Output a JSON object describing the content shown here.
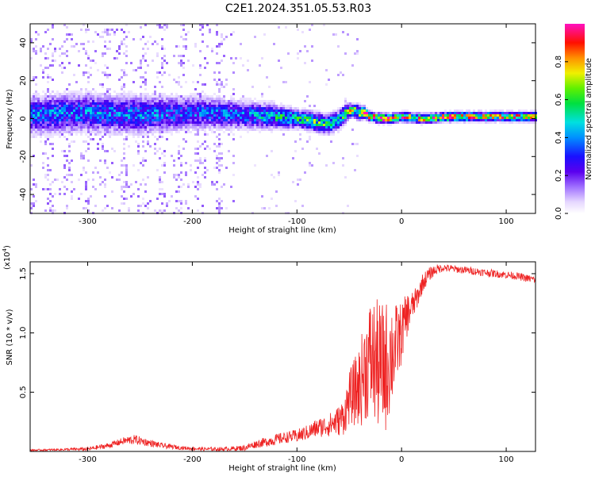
{
  "figure": {
    "title": "C2E1.2024.351.05.53.R03"
  },
  "chart_data": [
    {
      "type": "heatmap",
      "panel": "spectrogram",
      "xlabel": "Height of straight line (km)",
      "ylabel": "Frequency (Hz)",
      "xlim": [
        -355,
        128
      ],
      "ylim": [
        -50,
        50
      ],
      "xticks": [
        -300,
        -200,
        -100,
        0,
        100
      ],
      "yticks": [
        -40,
        -20,
        0,
        20,
        40
      ],
      "colorbar": {
        "label": "Normalized spectral amplitude",
        "range": [
          0,
          1
        ],
        "ticks": [
          0.0,
          0.2,
          0.4,
          0.6,
          0.8
        ],
        "colormap": "rainbow (white-purple-blue-cyan-green-yellow-red-magenta)",
        "position": "right"
      },
      "signal_track": {
        "description_of_profile": "frequency centroid of the main signal band versus height",
        "x": [
          -355,
          -300,
          -250,
          -200,
          -150,
          -120,
          -100,
          -80,
          -70,
          -60,
          -55,
          -50,
          -45,
          -40,
          -35,
          -30,
          -20,
          -10,
          0,
          20,
          50,
          100,
          128
        ],
        "center_freq": [
          2,
          3,
          2,
          3,
          2,
          1,
          0,
          -2,
          -3,
          -1,
          2,
          4,
          4,
          3,
          3,
          1,
          0,
          0,
          1,
          0,
          1,
          1,
          1
        ],
        "band_halfwidth": [
          8,
          8,
          8,
          7,
          6,
          5,
          4,
          4,
          4,
          4,
          4,
          3,
          3,
          3,
          2.5,
          2,
          2,
          2,
          2,
          2,
          2,
          2,
          2
        ],
        "peak_amplitude": [
          0.35,
          0.35,
          0.35,
          0.32,
          0.35,
          0.45,
          0.5,
          0.55,
          0.55,
          0.5,
          0.55,
          0.6,
          0.65,
          0.7,
          0.8,
          0.85,
          0.95,
          0.8,
          0.8,
          0.75,
          0.8,
          0.75,
          0.72
        ],
        "scatter_noise": "diffuse low-amplitude speckle across all frequencies for heights below about -160 km"
      }
    },
    {
      "type": "line",
      "panel": "snr",
      "xlabel": "Height of straight line (km)",
      "ylabel": "SNR (10 * v/v)",
      "y_multiplier_label": "(x10",
      "y_multiplier_exponent": "4",
      "xlim": [
        -355,
        128
      ],
      "ylim": [
        0,
        1.6
      ],
      "xticks": [
        -300,
        -200,
        -100,
        0,
        100
      ],
      "yticks": [
        0.5,
        1.0,
        1.5
      ],
      "ytick_labels": [
        "0.5",
        "1.0",
        "1.5"
      ],
      "series": [
        {
          "color": "#ee2222",
          "x": [
            -355,
            -330,
            -300,
            -280,
            -265,
            -255,
            -245,
            -230,
            -210,
            -190,
            -170,
            -150,
            -140,
            -130,
            -120,
            -110,
            -100,
            -90,
            -80,
            -70,
            -60,
            -55,
            -50,
            -45,
            -40,
            -35,
            -30,
            -25,
            -20,
            -15,
            -10,
            -5,
            0,
            5,
            10,
            15,
            20,
            25,
            30,
            35,
            40,
            50,
            60,
            70,
            80,
            90,
            100,
            110,
            120,
            128
          ],
          "y": [
            0.01,
            0.015,
            0.02,
            0.05,
            0.09,
            0.1,
            0.08,
            0.05,
            0.03,
            0.02,
            0.02,
            0.03,
            0.06,
            0.08,
            0.1,
            0.12,
            0.13,
            0.16,
            0.2,
            0.22,
            0.26,
            0.3,
            0.45,
            0.5,
            0.55,
            0.7,
            0.78,
            0.75,
            0.7,
            0.72,
            0.82,
            0.9,
            1.0,
            1.15,
            1.22,
            1.3,
            1.42,
            1.48,
            1.52,
            1.54,
            1.55,
            1.54,
            1.53,
            1.52,
            1.51,
            1.5,
            1.49,
            1.48,
            1.46,
            1.45
          ],
          "noise": [
            0.005,
            0.005,
            0.01,
            0.015,
            0.02,
            0.025,
            0.02,
            0.015,
            0.01,
            0.01,
            0.01,
            0.015,
            0.02,
            0.025,
            0.03,
            0.03,
            0.035,
            0.04,
            0.05,
            0.06,
            0.08,
            0.1,
            0.14,
            0.18,
            0.22,
            0.28,
            0.32,
            0.34,
            0.35,
            0.35,
            0.3,
            0.22,
            0.16,
            0.12,
            0.08,
            0.06,
            0.05,
            0.04,
            0.03,
            0.025,
            0.02,
            0.02,
            0.02,
            0.02,
            0.02,
            0.02,
            0.02,
            0.02,
            0.02,
            0.02
          ]
        }
      ]
    }
  ]
}
